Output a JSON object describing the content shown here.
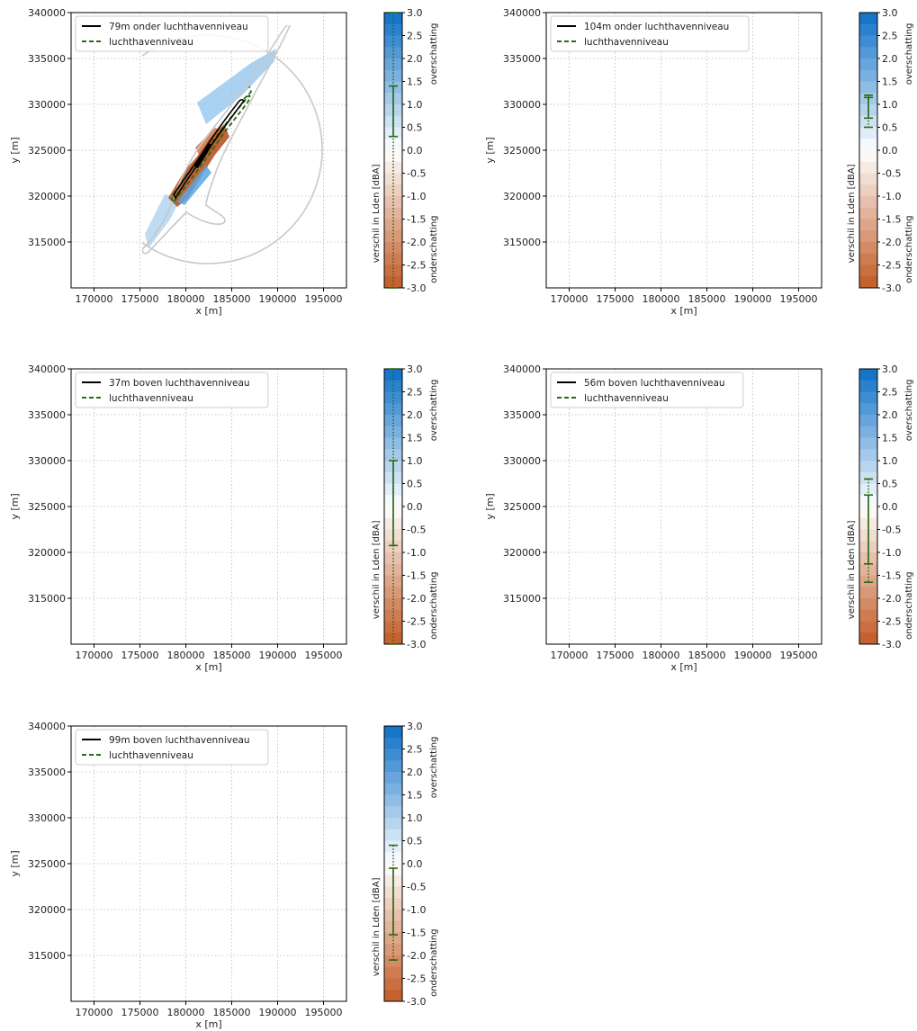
{
  "figure": {
    "x_ticks": [
      "170000",
      "175000",
      "180000",
      "185000",
      "190000",
      "195000"
    ],
    "y_ticks": [
      "315000",
      "320000",
      "325000",
      "330000",
      "335000",
      "340000"
    ],
    "xlabel": "x [m]",
    "ylabel": "y [m]",
    "colorbar": {
      "label": "verschil in Lden [dBA]",
      "top_label": "overschatting",
      "bottom_label": "onderschatting",
      "ticks": [
        "3.0",
        "2.5",
        "2.0",
        "1.5",
        "1.0",
        "0.5",
        "0.0",
        "-0.5",
        "-1.0",
        "-1.5",
        "-2.0",
        "-2.5",
        "-3.0"
      ],
      "colors": {
        "positive": "#0b6fc7",
        "zero": "#ffffff",
        "negative": "#c25a26"
      }
    },
    "legend_second": "luchthavenniveau"
  },
  "chart_data": [
    {
      "type": "heatmap",
      "legend": [
        "79m onder luchthavenniveau",
        "luchthavenniveau"
      ],
      "legend_position": "top-left",
      "xlim": [
        167500,
        197500
      ],
      "ylim": [
        310000,
        340000
      ],
      "grid": true,
      "colorbar_range": [
        -3.0,
        3.0
      ],
      "range_bar": {
        "outer": [
          -3.0,
          3.0
        ],
        "inner": [
          0.3,
          1.4
        ]
      }
    },
    {
      "type": "heatmap",
      "legend": [
        "104m onder luchthavenniveau",
        "luchthavenniveau"
      ],
      "legend_position": "top-left",
      "xlim": [
        167500,
        197500
      ],
      "ylim": [
        310000,
        340000
      ],
      "grid": true,
      "colorbar_range": [
        -3.0,
        3.0
      ],
      "range_bar": {
        "outer": [
          0.5,
          1.2
        ],
        "inner": [
          0.7,
          1.15
        ]
      }
    },
    {
      "type": "heatmap",
      "legend": [
        "37m boven luchthavenniveau",
        "luchthavenniveau"
      ],
      "legend_position": "top-left",
      "xlim": [
        167500,
        197500
      ],
      "ylim": [
        310000,
        340000
      ],
      "grid": true,
      "colorbar_range": [
        -3.0,
        3.0
      ],
      "range_bar": {
        "outer": [
          -3.0,
          3.0
        ],
        "inner": [
          -0.85,
          1.0
        ]
      }
    },
    {
      "type": "heatmap",
      "legend": [
        "56m boven luchthavenniveau",
        "luchthavenniveau"
      ],
      "legend_position": "top-left",
      "xlim": [
        167500,
        197500
      ],
      "ylim": [
        310000,
        340000
      ],
      "grid": true,
      "colorbar_range": [
        -3.0,
        3.0
      ],
      "range_bar": {
        "outer": [
          -1.65,
          0.6
        ],
        "inner": [
          -1.25,
          0.25
        ]
      }
    },
    {
      "type": "heatmap",
      "legend": [
        "99m boven luchthavenniveau",
        "luchthavenniveau"
      ],
      "legend_position": "top-left",
      "xlim": [
        167500,
        197500
      ],
      "ylim": [
        310000,
        340000
      ],
      "grid": true,
      "colorbar_range": [
        -3.0,
        3.0
      ],
      "range_bar": {
        "outer": [
          -2.1,
          0.4
        ],
        "inner": [
          -1.55,
          -0.1
        ]
      }
    }
  ]
}
